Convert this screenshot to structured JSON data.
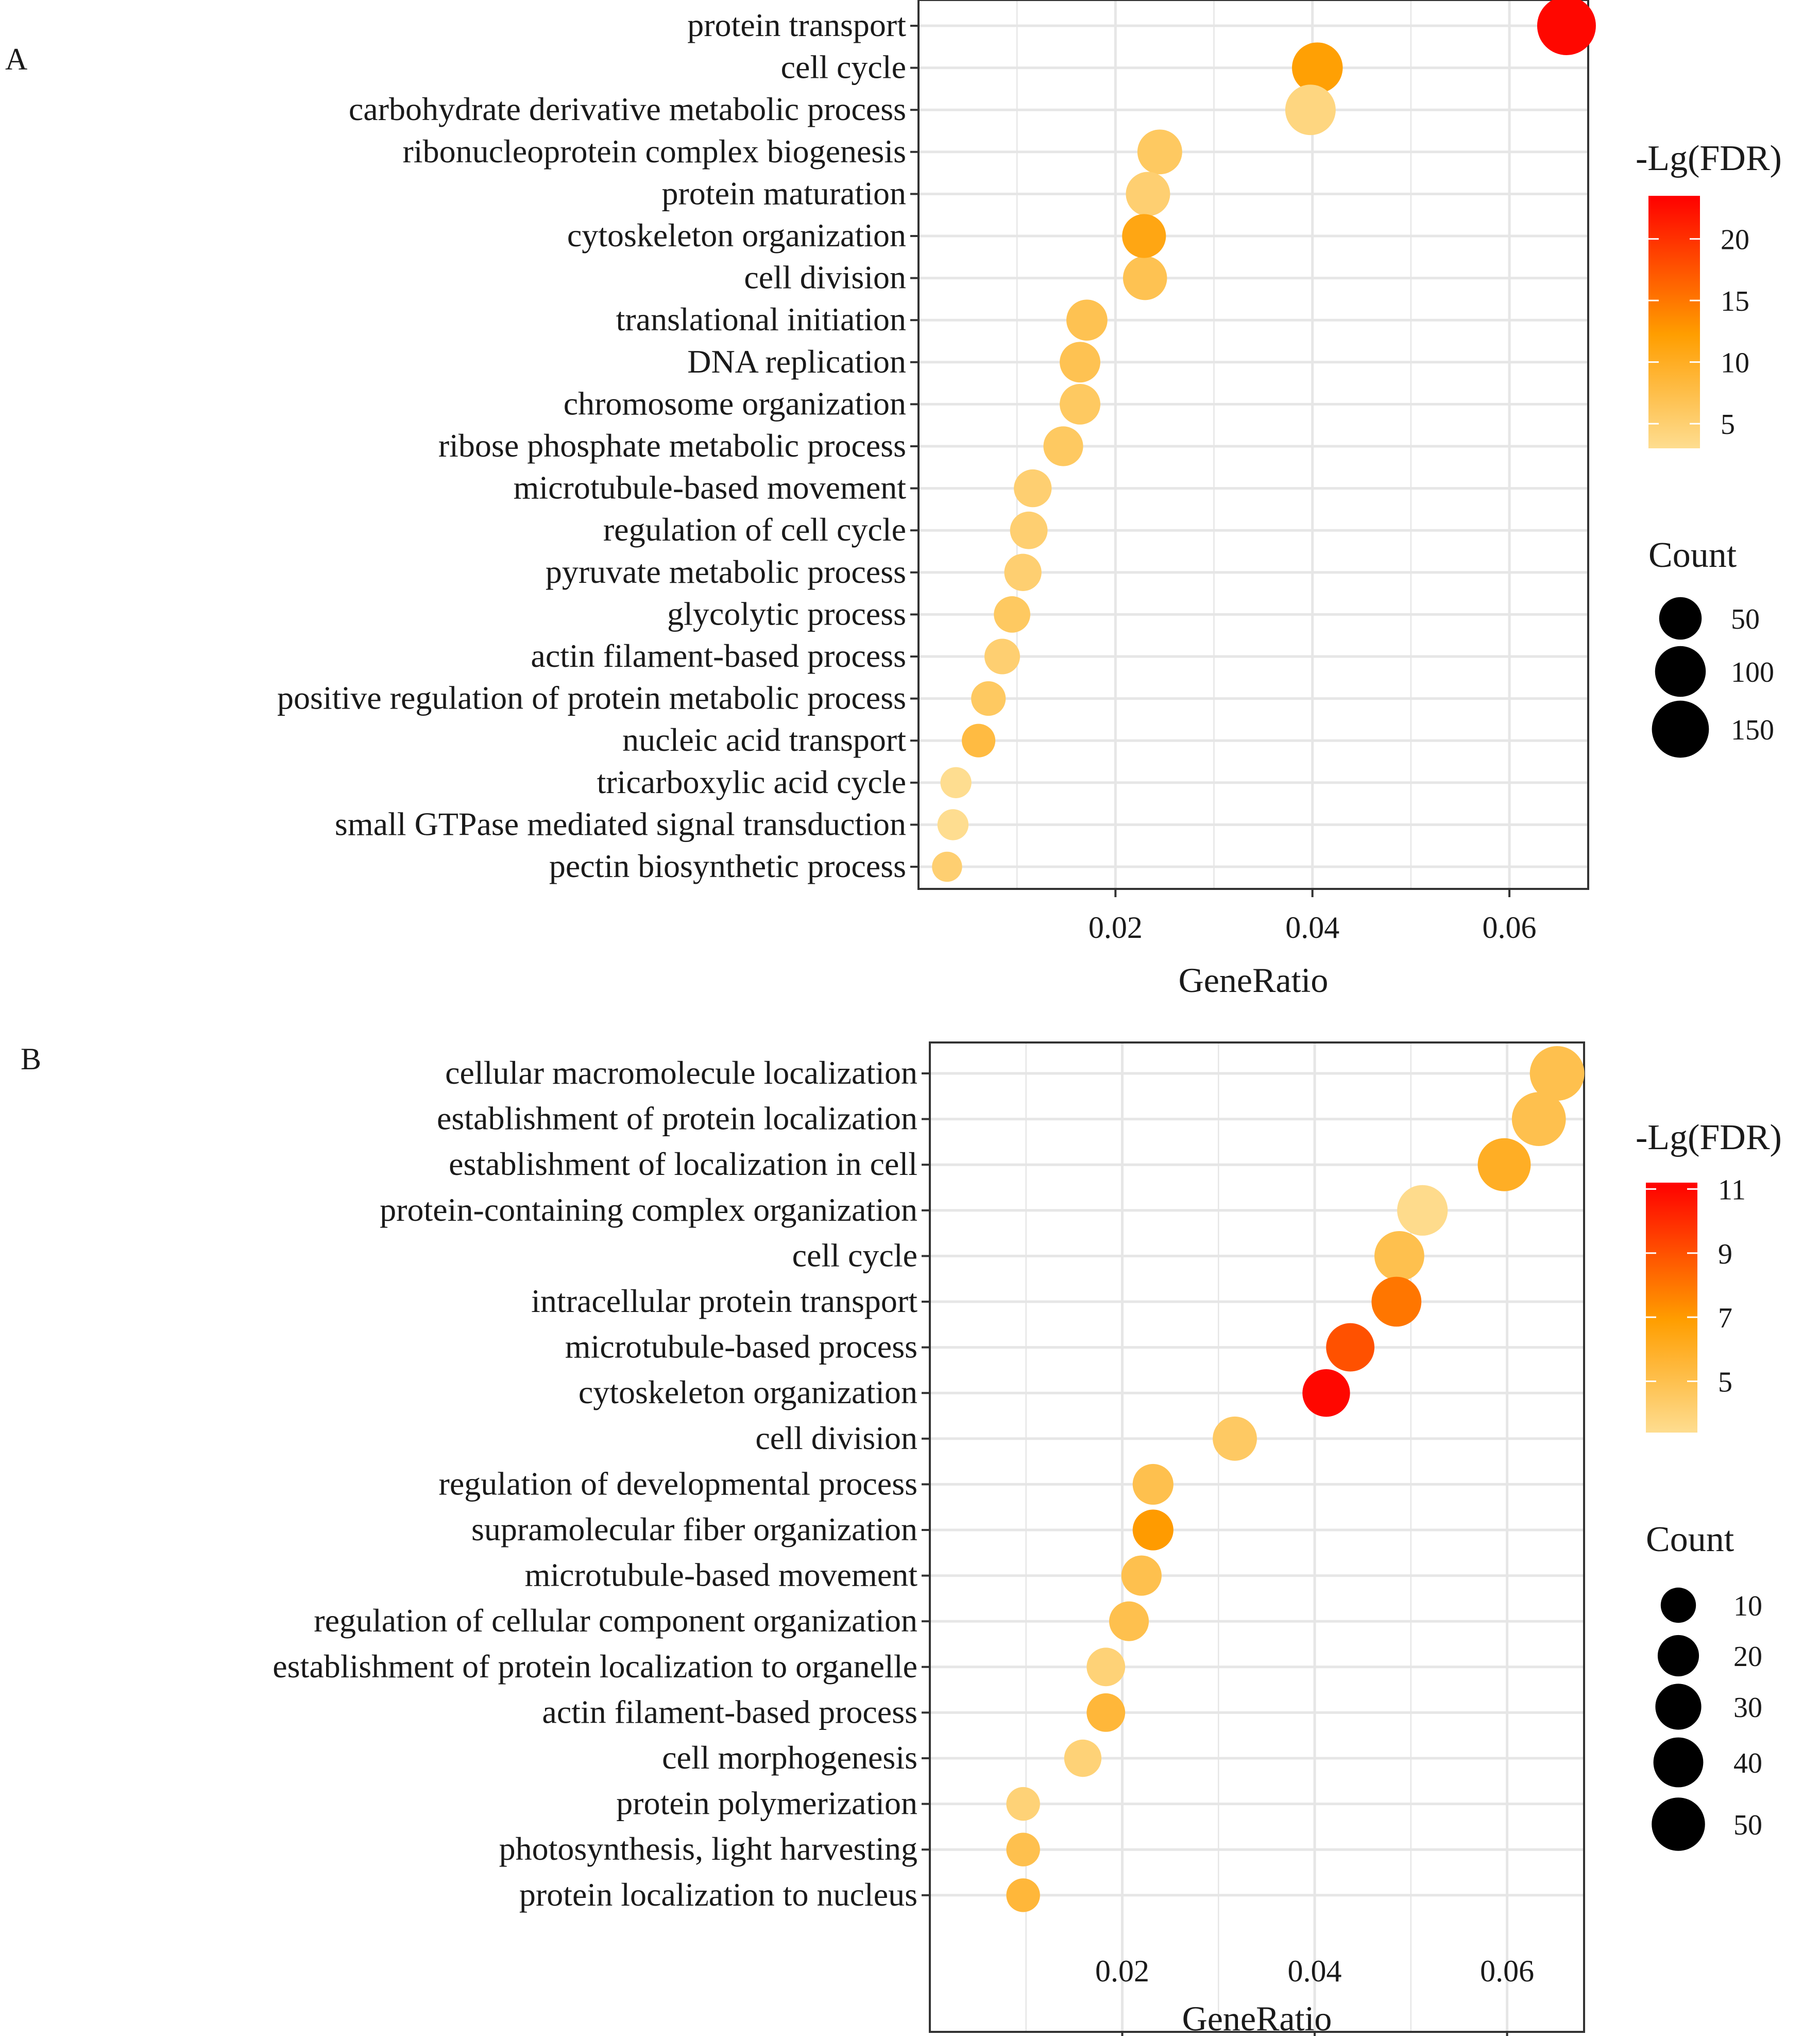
{
  "colors": {
    "low": "#FEDD90",
    "mid": "#FF9E00",
    "high": "#FF0000",
    "grid": "#E6E6E6",
    "frame": "#333333",
    "size_key": "#000000"
  },
  "chart_data": [
    {
      "panel": "A",
      "type": "scatter",
      "xlabel": "GeneRatio",
      "xlim": [
        0.0,
        0.068
      ],
      "x_ticks": [
        0.02,
        0.04,
        0.06
      ],
      "x_tick_labels": [
        "0.02",
        "0.04",
        "0.06"
      ],
      "grid": true,
      "categories": [
        "protein transport",
        "cell cycle",
        "carbohydrate derivative metabolic process",
        "ribonucleoprotein complex biogenesis",
        "protein maturation",
        "cytoskeleton organization",
        "cell division",
        "translational initiation",
        "DNA replication",
        "chromosome organization",
        "ribose phosphate metabolic process",
        "microtubule-based movement",
        "regulation of cell cycle",
        "pyruvate metabolic process",
        "glycolytic process",
        "actin filament-based process",
        "positive regulation of protein metabolic process",
        "nucleic acid transport",
        "tricarboxylic acid cycle",
        "small GTPase mediated signal transduction",
        "pectin biosynthetic process"
      ],
      "gene_ratio": [
        0.0658,
        0.0405,
        0.0398,
        0.0245,
        0.0233,
        0.0229,
        0.023,
        0.0171,
        0.0164,
        0.0164,
        0.0147,
        0.0116,
        0.0112,
        0.0106,
        0.0095,
        0.0085,
        0.0071,
        0.0061,
        0.0038,
        0.0035,
        0.0029
      ],
      "count": [
        165,
        100,
        98,
        62,
        59,
        57,
        58,
        43,
        41,
        41,
        37,
        29,
        28,
        27,
        24,
        21,
        18,
        15,
        9,
        9,
        7
      ],
      "neg_lg_fdr": [
        23,
        12,
        4,
        6,
        5,
        11,
        7,
        7,
        7,
        6,
        6,
        5,
        5,
        5,
        6,
        5,
        6,
        8,
        3,
        3,
        5
      ],
      "color_legend": {
        "title": "-Lg(FDR)",
        "min": 3,
        "max": 23.5,
        "breaks": [
          5,
          10,
          15,
          20
        ],
        "labels": [
          "5",
          "10",
          "15",
          "20"
        ]
      },
      "size_legend": {
        "title": "Count",
        "breaks": [
          50,
          100,
          150
        ],
        "labels": [
          "50",
          "100",
          "150"
        ]
      }
    },
    {
      "panel": "B",
      "type": "scatter",
      "xlabel": "GeneRatio",
      "xlim": [
        0.0,
        0.068
      ],
      "x_ticks": [
        0.02,
        0.04,
        0.06
      ],
      "x_tick_labels": [
        "0.02",
        "0.04",
        "0.06"
      ],
      "grid": true,
      "categories": [
        "cellular macromolecule localization",
        "establishment of protein localization",
        "establishment of localization in cell",
        "protein-containing complex organization",
        "cell cycle",
        "intracellular protein transport",
        "microtubule-based process",
        "cytoskeleton organization",
        "cell division",
        "regulation of developmental process",
        "supramolecular fiber organization",
        "microtubule-based movement",
        "regulation of cellular component organization",
        "establishment of protein localization to organelle",
        "actin filament-based process",
        "cell morphogenesis",
        "protein polymerization",
        "photosynthesis, light harvesting",
        "protein localization to nucleus"
      ],
      "gene_ratio": [
        0.0652,
        0.0633,
        0.0597,
        0.0512,
        0.0488,
        0.0485,
        0.0437,
        0.0412,
        0.0317,
        0.0232,
        0.0232,
        0.022,
        0.0207,
        0.0183,
        0.0183,
        0.0159,
        0.0097,
        0.0097,
        0.0097
      ],
      "count": [
        54,
        52,
        49,
        42,
        40,
        40,
        36,
        34,
        26,
        19,
        19,
        18,
        17,
        15,
        15,
        13,
        8,
        8,
        8
      ],
      "neg_lg_fdr": [
        5,
        5,
        6,
        3.5,
        5,
        8,
        9,
        11,
        4.5,
        5,
        7,
        5,
        5,
        4,
        5.5,
        4,
        4,
        5,
        5.5
      ],
      "color_legend": {
        "title": "-Lg(FDR)",
        "min": 3.4,
        "max": 11.2,
        "breaks": [
          5,
          7,
          9,
          11
        ],
        "labels": [
          "5",
          "7",
          "9",
          "11"
        ]
      },
      "size_legend": {
        "title": "Count",
        "breaks": [
          10,
          20,
          30,
          40,
          50
        ],
        "labels": [
          "10",
          "20",
          "30",
          "40",
          "50"
        ]
      }
    }
  ]
}
